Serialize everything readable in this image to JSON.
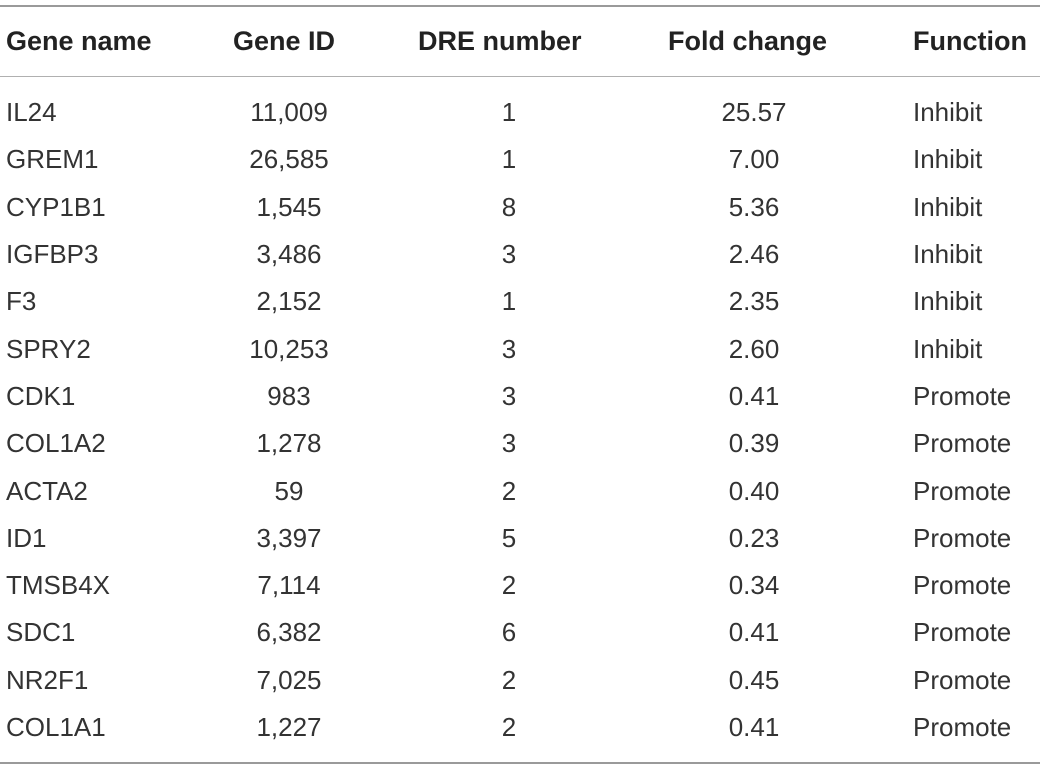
{
  "table": {
    "headers": {
      "gene_name": "Gene name",
      "gene_id": "Gene ID",
      "dre_number": "DRE number",
      "fold_change": "Fold change",
      "function": "Function"
    },
    "rows": [
      {
        "gene_name": "IL24",
        "gene_id": "11,009",
        "dre_number": "1",
        "fold_change": "25.57",
        "function": "Inhibit"
      },
      {
        "gene_name": "GREM1",
        "gene_id": "26,585",
        "dre_number": "1",
        "fold_change": "7.00",
        "function": "Inhibit"
      },
      {
        "gene_name": "CYP1B1",
        "gene_id": "1,545",
        "dre_number": "8",
        "fold_change": "5.36",
        "function": "Inhibit"
      },
      {
        "gene_name": "IGFBP3",
        "gene_id": "3,486",
        "dre_number": "3",
        "fold_change": "2.46",
        "function": "Inhibit"
      },
      {
        "gene_name": "F3",
        "gene_id": "2,152",
        "dre_number": "1",
        "fold_change": "2.35",
        "function": "Inhibit"
      },
      {
        "gene_name": "SPRY2",
        "gene_id": "10,253",
        "dre_number": "3",
        "fold_change": "2.60",
        "function": "Inhibit"
      },
      {
        "gene_name": "CDK1",
        "gene_id": "983",
        "dre_number": "3",
        "fold_change": "0.41",
        "function": "Promote"
      },
      {
        "gene_name": "COL1A2",
        "gene_id": "1,278",
        "dre_number": "3",
        "fold_change": "0.39",
        "function": "Promote"
      },
      {
        "gene_name": "ACTA2",
        "gene_id": "59",
        "dre_number": "2",
        "fold_change": "0.40",
        "function": "Promote"
      },
      {
        "gene_name": "ID1",
        "gene_id": "3,397",
        "dre_number": "5",
        "fold_change": "0.23",
        "function": "Promote"
      },
      {
        "gene_name": "TMSB4X",
        "gene_id": "7,114",
        "dre_number": "2",
        "fold_change": "0.34",
        "function": "Promote"
      },
      {
        "gene_name": "SDC1",
        "gene_id": "6,382",
        "dre_number": "6",
        "fold_change": "0.41",
        "function": "Promote"
      },
      {
        "gene_name": "NR2F1",
        "gene_id": "7,025",
        "dre_number": "2",
        "fold_change": "0.45",
        "function": "Promote"
      },
      {
        "gene_name": "COL1A1",
        "gene_id": "1,227",
        "dre_number": "2",
        "fold_change": "0.41",
        "function": "Promote"
      }
    ]
  },
  "colors": {
    "text": "#333333",
    "header_text": "#222222",
    "rule": "#9a9a9a"
  }
}
